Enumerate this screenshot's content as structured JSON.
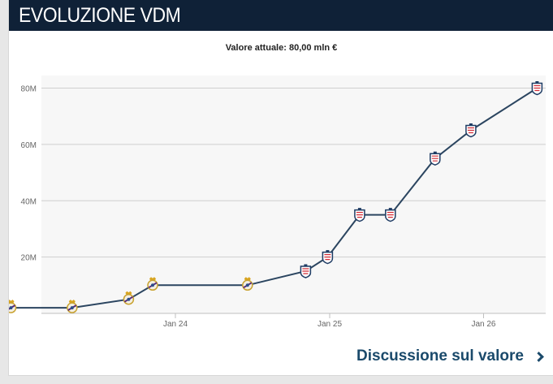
{
  "header": {
    "title": "EVOLUZIONE VDM"
  },
  "current_value": "Valore attuale: 80,00 mln €",
  "footer": {
    "link_label": "Discussione sul valore"
  },
  "colors": {
    "header_bg": "#0f2137",
    "line": "#2b4560",
    "link": "#1b4a6b",
    "plot_bg": "#f7f7f7",
    "grid": "#cfcfcf"
  },
  "chart_data": {
    "type": "line",
    "title": "",
    "xlabel": "",
    "ylabel": "",
    "x_ticks": [
      "Jan 24",
      "Jan 25",
      "Jan 26"
    ],
    "y_ticks": [
      "20M",
      "40M",
      "60M",
      "80M"
    ],
    "ylim": [
      0,
      80000000
    ],
    "grid": "horizontal",
    "series": [
      {
        "points": [
          {
            "x": "2022-12-07",
            "y": 2000000,
            "club": "real-madrid-crest-icon"
          },
          {
            "x": "2023-05-01",
            "y": 2000000,
            "club": "real-madrid-crest-icon"
          },
          {
            "x": "2023-09-12",
            "y": 5000000,
            "club": "real-madrid-crest-icon"
          },
          {
            "x": "2023-11-08",
            "y": 10000000,
            "club": "real-madrid-crest-icon"
          },
          {
            "x": "2024-06-20",
            "y": 10000000,
            "club": "real-madrid-crest-icon"
          },
          {
            "x": "2024-11-05",
            "y": 15000000,
            "club": "lille-crest-icon"
          },
          {
            "x": "2024-12-27",
            "y": 20000000,
            "club": "lille-crest-icon"
          },
          {
            "x": "2025-03-13",
            "y": 35000000,
            "club": "lille-crest-icon"
          },
          {
            "x": "2025-05-25",
            "y": 35000000,
            "club": "lille-crest-icon"
          },
          {
            "x": "2025-09-08",
            "y": 55000000,
            "club": "lille-crest-icon"
          },
          {
            "x": "2025-12-02",
            "y": 65000000,
            "club": "lille-crest-icon"
          },
          {
            "x": "2026-05-08",
            "y": 80000000,
            "club": "lille-crest-icon"
          }
        ]
      }
    ]
  }
}
